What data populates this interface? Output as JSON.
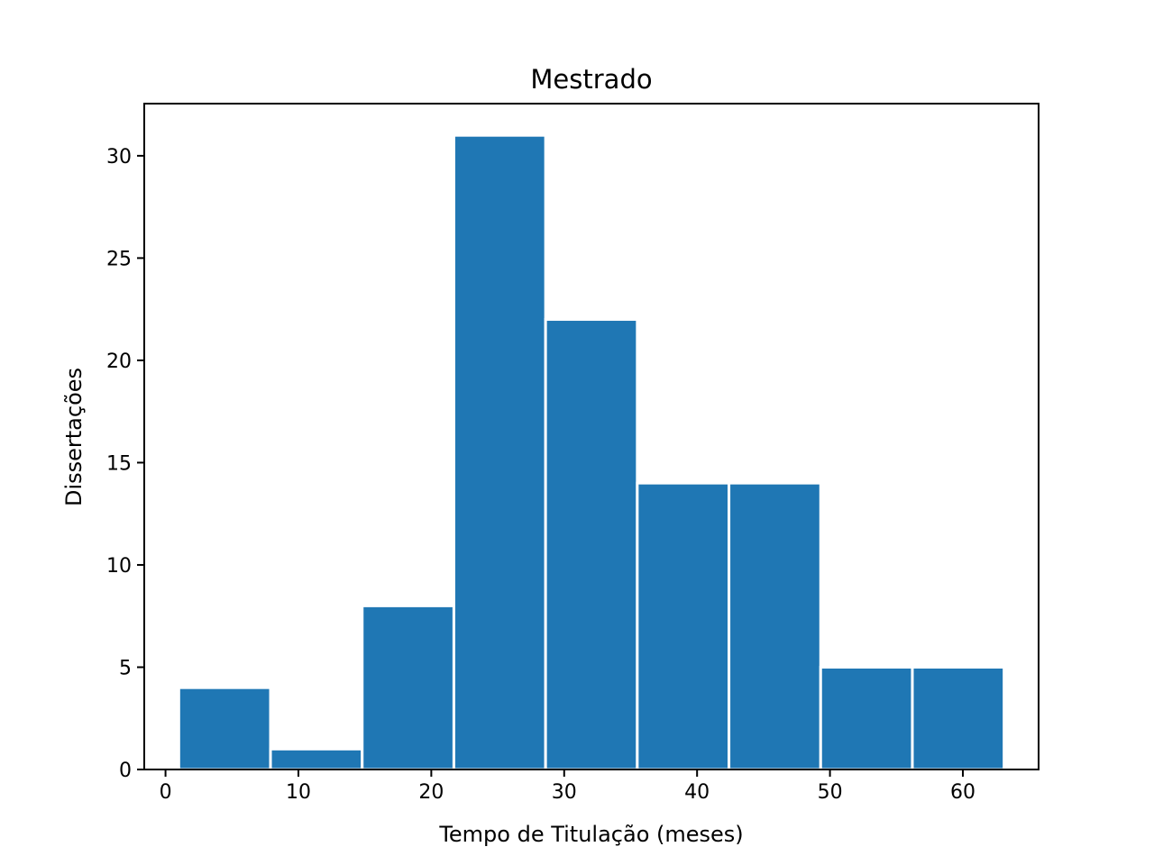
{
  "chart_data": {
    "type": "bar",
    "title": "Mestrado",
    "xlabel": "Tempo de Titulação (meses)",
    "ylabel": "Dissertações",
    "bin_edges": [
      1,
      7.9,
      14.8,
      21.7,
      28.6,
      35.5,
      42.4,
      49.3,
      56.2,
      63.1
    ],
    "values": [
      4,
      1,
      8,
      31,
      22,
      14,
      14,
      5,
      5
    ],
    "xlim": [
      -1.6,
      65.7
    ],
    "ylim": [
      0,
      32.55
    ],
    "xticks": [
      0,
      10,
      20,
      30,
      40,
      50,
      60
    ],
    "xtick_labels": [
      "0",
      "10",
      "20",
      "30",
      "40",
      "50",
      "60"
    ],
    "yticks": [
      0,
      5,
      10,
      15,
      20,
      25,
      30
    ],
    "ytick_labels": [
      "0",
      "5",
      "10",
      "15",
      "20",
      "25",
      "30"
    ],
    "bar_color": "#1f77b4",
    "grid": false,
    "legend": false
  }
}
